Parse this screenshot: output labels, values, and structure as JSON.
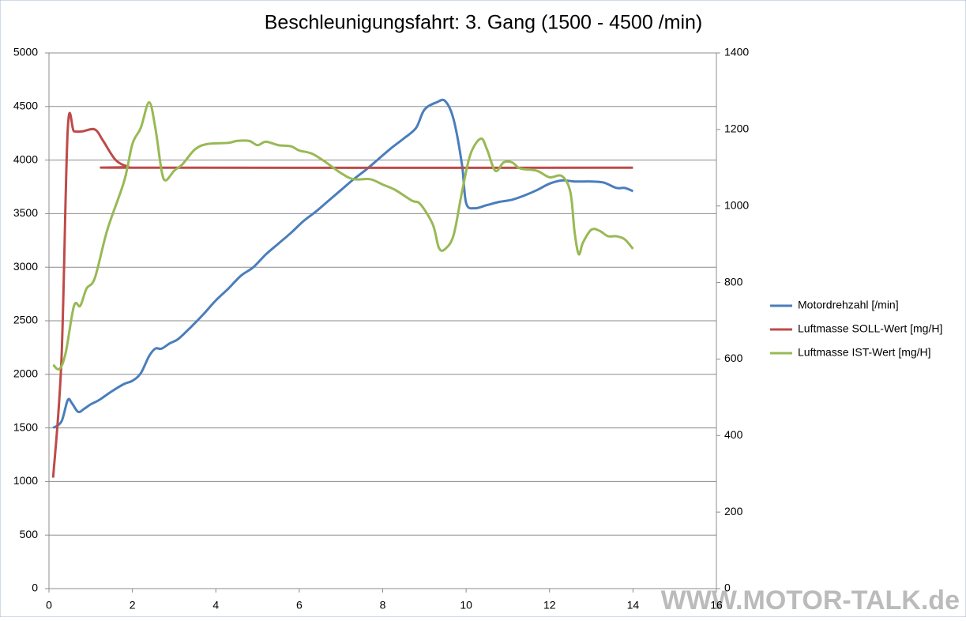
{
  "chart_data": {
    "type": "line",
    "title": "Beschleunigungsfahrt: 3. Gang (1500 - 4500 /min)",
    "xlim": [
      0,
      16
    ],
    "xticks": [
      0,
      2,
      4,
      6,
      8,
      10,
      12,
      14,
      16
    ],
    "ylim": [
      0,
      5000
    ],
    "yticks": [
      0,
      500,
      1000,
      1500,
      2000,
      2500,
      3000,
      3500,
      4000,
      4500,
      5000
    ],
    "y2lim": [
      0,
      1400
    ],
    "y2ticks": [
      0,
      200,
      400,
      600,
      800,
      1000,
      1200,
      1400
    ],
    "grid": true,
    "legend": "right",
    "watermark": "WWW.MOTOR-TALK.de",
    "series": [
      {
        "name": "Motordrehzahl [/min]",
        "color": "#4a7ebb",
        "x": [
          0.1,
          0.3,
          0.45,
          0.55,
          0.7,
          0.85,
          1.0,
          1.2,
          1.5,
          1.8,
          2.0,
          2.2,
          2.4,
          2.55,
          2.7,
          2.9,
          3.1,
          3.4,
          3.7,
          4.0,
          4.3,
          4.6,
          4.9,
          5.2,
          5.5,
          5.8,
          6.1,
          6.4,
          6.7,
          7.0,
          7.3,
          7.6,
          7.9,
          8.2,
          8.5,
          8.8,
          9.0,
          9.3,
          9.5,
          9.7,
          9.9,
          10.0,
          10.2,
          10.5,
          10.8,
          11.1,
          11.4,
          11.7,
          12.0,
          12.3,
          12.6,
          13.0,
          13.3,
          13.6,
          13.8,
          14.0
        ],
        "values": [
          1500,
          1560,
          1760,
          1730,
          1650,
          1680,
          1720,
          1760,
          1840,
          1910,
          1940,
          2010,
          2170,
          2240,
          2240,
          2290,
          2330,
          2440,
          2560,
          2690,
          2800,
          2920,
          3000,
          3120,
          3220,
          3320,
          3430,
          3520,
          3620,
          3720,
          3820,
          3910,
          4010,
          4110,
          4200,
          4300,
          4470,
          4540,
          4550,
          4380,
          3960,
          3600,
          3550,
          3580,
          3610,
          3630,
          3670,
          3720,
          3780,
          3810,
          3800,
          3800,
          3790,
          3740,
          3740,
          3710
        ]
      },
      {
        "name": "Luftmasse SOLL-Wert [mg/H]",
        "color": "#be4b48",
        "axis": "y2",
        "x": [
          0.1,
          0.3,
          0.45,
          0.6,
          0.8,
          1.1,
          1.3,
          1.6,
          1.9,
          2.2,
          14.0
        ],
        "values": [
          290,
          600,
          1200,
          1195,
          1195,
          1200,
          1170,
          1120,
          1103,
          1100,
          1100
        ]
      },
      {
        "name": "Luftmasse IST-Wert [mg/H]",
        "color": "#98b954",
        "axis": "y2",
        "x": [
          0.1,
          0.25,
          0.4,
          0.6,
          0.75,
          0.9,
          1.1,
          1.4,
          1.8,
          2.0,
          2.2,
          2.4,
          2.55,
          2.7,
          2.8,
          3.0,
          3.2,
          3.5,
          3.8,
          4.3,
          4.5,
          4.8,
          5.0,
          5.2,
          5.5,
          5.8,
          6.0,
          6.3,
          6.6,
          7.0,
          7.3,
          7.7,
          8.0,
          8.3,
          8.7,
          8.9,
          9.2,
          9.35,
          9.5,
          9.7,
          9.9,
          10.1,
          10.35,
          10.5,
          10.7,
          10.9,
          11.1,
          11.3,
          11.7,
          12.0,
          12.3,
          12.5,
          12.6,
          12.7,
          12.8,
          13.0,
          13.2,
          13.4,
          13.6,
          13.8,
          14.0
        ],
        "values": [
          585,
          574,
          616,
          739,
          739,
          784,
          812,
          938,
          1064,
          1162,
          1204,
          1271,
          1204,
          1092,
          1067,
          1092,
          1109,
          1148,
          1162,
          1165,
          1170,
          1170,
          1159,
          1168,
          1159,
          1156,
          1145,
          1137,
          1117,
          1086,
          1070,
          1070,
          1056,
          1042,
          1014,
          1005,
          952,
          890,
          888,
          924,
          1036,
          1134,
          1176,
          1148,
          1092,
          1114,
          1114,
          1098,
          1092,
          1075,
          1078,
          1036,
          932,
          874,
          904,
          938,
          935,
          921,
          921,
          913,
          888
        ]
      }
    ]
  }
}
